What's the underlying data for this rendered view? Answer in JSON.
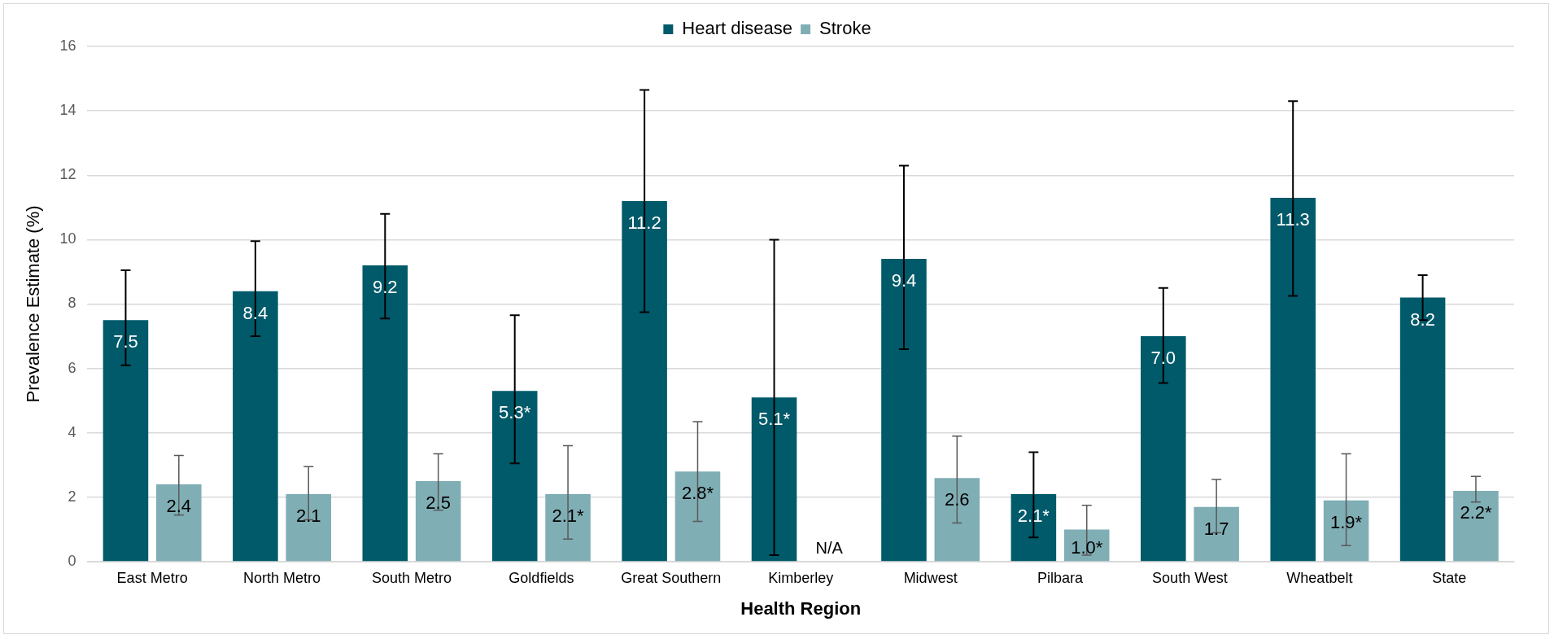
{
  "chart_data": {
    "type": "bar",
    "xlabel": "Health Region",
    "ylabel": "Prevalence Estimate (%)",
    "categories": [
      "East Metro",
      "North Metro",
      "South Metro",
      "Goldfields",
      "Great Southern",
      "Kimberley",
      "Midwest",
      "Pilbara",
      "South West",
      "Wheatbelt",
      "State"
    ],
    "series": [
      {
        "name": "Heart disease",
        "color": "#005a6a",
        "values": [
          7.5,
          8.4,
          9.2,
          5.3,
          11.2,
          5.1,
          9.4,
          2.1,
          7.0,
          11.3,
          8.2
        ],
        "value_labels": [
          "7.5",
          "8.4",
          "9.2",
          "5.3*",
          "11.2",
          "5.1*",
          "9.4",
          "2.1*",
          "7.0",
          "11.3",
          "8.2"
        ],
        "errors": [
          [
            6.1,
            9.05
          ],
          [
            7.0,
            9.95
          ],
          [
            7.55,
            10.8
          ],
          [
            3.05,
            7.65
          ],
          [
            7.75,
            14.65
          ],
          [
            0.2,
            10.0
          ],
          [
            6.6,
            12.3
          ],
          [
            0.75,
            3.4
          ],
          [
            5.55,
            8.5
          ],
          [
            8.25,
            14.3
          ],
          [
            7.5,
            8.9
          ]
        ]
      },
      {
        "name": "Stroke",
        "color": "#80aeb5",
        "values": [
          2.4,
          2.1,
          2.5,
          2.1,
          2.8,
          null,
          2.6,
          1.0,
          1.7,
          1.9,
          2.2
        ],
        "value_labels": [
          "2.4",
          "2.1",
          "2.5",
          "2.1*",
          "2.8*",
          null,
          "2.6",
          "1.0*",
          "1.7",
          "1.9*",
          "2.2*"
        ],
        "errors": [
          [
            1.45,
            3.3
          ],
          [
            1.3,
            2.95
          ],
          [
            1.6,
            3.35
          ],
          [
            0.7,
            3.6
          ],
          [
            1.25,
            4.35
          ],
          null,
          [
            1.2,
            3.9
          ],
          [
            0.2,
            1.75
          ],
          [
            0.9,
            2.55
          ],
          [
            0.5,
            3.35
          ],
          [
            1.85,
            2.65
          ]
        ]
      }
    ],
    "annotations": [
      {
        "text": "N/A",
        "x": "Kimberley",
        "y": 0
      }
    ],
    "ylim": [
      0,
      16
    ],
    "yticks": [
      0,
      2,
      4,
      6,
      8,
      10,
      12,
      14,
      16
    ],
    "grid": "y",
    "legend": "top"
  }
}
